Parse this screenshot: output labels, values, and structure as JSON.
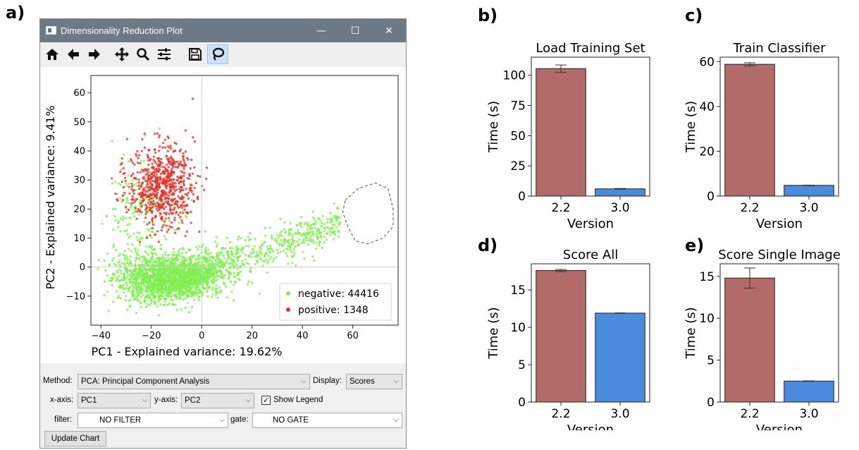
{
  "panel_labels": [
    "a)",
    "b)",
    "c)",
    "d)",
    "e)"
  ],
  "window": {
    "title": "Dimensionality Reduction Plot",
    "controls": {
      "minimize": "—",
      "maximize": "☐",
      "close": "✕"
    },
    "toolbar": [
      "home-icon",
      "back-icon",
      "forward-icon",
      "pan-icon",
      "zoom-icon",
      "configure-icon",
      "save-icon",
      "lasso-icon"
    ]
  },
  "form": {
    "method_label": "Method:",
    "method_value": "PCA: Principal Component Analysis",
    "display_label": "Display:",
    "display_value": "Scores",
    "xaxis_label": "x-axis:",
    "xaxis_value": "PC1",
    "yaxis_label": "y-axis:",
    "yaxis_value": "PC2",
    "show_legend_label": "Show Legend",
    "show_legend_checked": true,
    "filter_label": "filter:",
    "filter_value": "NO FILTER",
    "gate_label": "gate:",
    "gate_value": "NO GATE",
    "update_button": "Update Chart"
  },
  "chart_data": [
    {
      "type": "scatter",
      "xlabel": "PC1 - Explained variance: 19.62%",
      "ylabel": "PC2 - Explained variance: 9.41%",
      "xlim": [
        -44,
        78
      ],
      "ylim": [
        -20,
        66
      ],
      "xticks": [
        -40,
        -20,
        0,
        20,
        40,
        60
      ],
      "yticks": [
        -10,
        0,
        10,
        20,
        30,
        40,
        50,
        60
      ],
      "legend_position": "bottom-right",
      "series": [
        {
          "name": "negative: 44416",
          "color": "#7fef4f"
        },
        {
          "name": "positive: 1348",
          "color": "#e0302a"
        }
      ],
      "lasso_gate": [
        [
          57,
          23
        ],
        [
          62,
          27
        ],
        [
          69,
          29
        ],
        [
          74,
          27
        ],
        [
          76,
          20
        ],
        [
          76,
          14
        ],
        [
          72,
          10
        ],
        [
          66,
          8
        ],
        [
          61,
          9
        ],
        [
          58,
          14
        ],
        [
          56,
          19
        ],
        [
          57,
          23
        ]
      ]
    },
    {
      "type": "bar",
      "title": "Load Training Set",
      "categories": [
        "2.2",
        "3.0"
      ],
      "values": [
        105.5,
        6
      ],
      "errors": [
        3,
        0.3
      ],
      "colors": [
        "#b26b68",
        "#4a8bde"
      ],
      "xlabel": "Version",
      "ylabel": "Time (s)",
      "ylim": [
        0,
        115
      ],
      "yticks": [
        0,
        25,
        50,
        75,
        100
      ]
    },
    {
      "type": "bar",
      "title": "Train Classifier",
      "categories": [
        "2.2",
        "3.0"
      ],
      "values": [
        58.8,
        4.8
      ],
      "errors": [
        0.7,
        0.1
      ],
      "colors": [
        "#b26b68",
        "#4a8bde"
      ],
      "xlabel": "Version",
      "ylabel": "Time (s)",
      "ylim": [
        0,
        62
      ],
      "yticks": [
        0,
        20,
        40,
        60
      ]
    },
    {
      "type": "bar",
      "title": "Score All",
      "categories": [
        "2.2",
        "3.0"
      ],
      "values": [
        17.6,
        11.9
      ],
      "errors": [
        0.15,
        0.03
      ],
      "colors": [
        "#b26b68",
        "#4a8bde"
      ],
      "xlabel": "Version",
      "ylabel": "Time (s)",
      "ylim": [
        0,
        18.5
      ],
      "yticks": [
        0,
        5,
        10,
        15
      ]
    },
    {
      "type": "bar",
      "title": "Score Single Image",
      "categories": [
        "2.2",
        "3.0"
      ],
      "values": [
        14.8,
        2.5
      ],
      "errors": [
        1.2,
        0.03
      ],
      "colors": [
        "#b26b68",
        "#4a8bde"
      ],
      "xlabel": "Version",
      "ylabel": "Time (s)",
      "ylim": [
        0,
        16.5
      ],
      "yticks": [
        0,
        5,
        10,
        15
      ]
    }
  ]
}
